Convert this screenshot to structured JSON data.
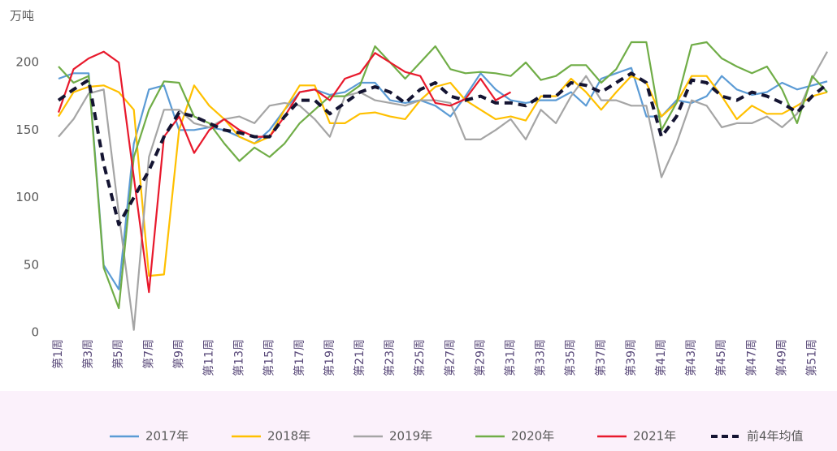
{
  "chart_data": {
    "type": "line",
    "y_label": "万吨",
    "categories": [
      "第1周",
      null,
      "第3周",
      null,
      "第5周",
      null,
      "第7周",
      null,
      "第9周",
      null,
      "第11周",
      null,
      "第13周",
      null,
      "第15周",
      null,
      "第17周",
      null,
      "第19周",
      null,
      "第21周",
      null,
      "第23周",
      null,
      "第25周",
      null,
      "第27周",
      null,
      "第29周",
      null,
      "第31周",
      null,
      "第33周",
      null,
      "第35周",
      null,
      "第37周",
      null,
      "第39周",
      null,
      "第41周",
      null,
      "第43周",
      null,
      "第45周",
      null,
      "第47周",
      null,
      "第49周",
      null,
      "第51周",
      null
    ],
    "ylim": [
      0,
      200
    ],
    "yticks": [
      0,
      50,
      100,
      150,
      200
    ],
    "grid": false,
    "series": [
      {
        "name": "2017年",
        "color": "#5b9bd5",
        "values": [
          188,
          192,
          192,
          50,
          32,
          140,
          180,
          183,
          150,
          150,
          152,
          150,
          145,
          140,
          150,
          165,
          178,
          180,
          176,
          178,
          185,
          185,
          172,
          170,
          172,
          168,
          160,
          175,
          192,
          180,
          172,
          170,
          172,
          172,
          178,
          168,
          188,
          192,
          196,
          160,
          160,
          172,
          170,
          175,
          190,
          180,
          176,
          178,
          185,
          180,
          183,
          186
        ]
      },
      {
        "name": "2018年",
        "color": "#ffc000",
        "values": [
          160,
          178,
          182,
          183,
          178,
          165,
          42,
          43,
          150,
          183,
          168,
          158,
          145,
          140,
          145,
          165,
          183,
          183,
          155,
          155,
          162,
          163,
          160,
          158,
          172,
          182,
          185,
          172,
          165,
          158,
          160,
          157,
          175,
          175,
          188,
          178,
          165,
          178,
          190,
          185,
          160,
          170,
          190,
          190,
          175,
          158,
          168,
          162,
          162,
          168,
          175,
          178
        ]
      },
      {
        "name": "2019年",
        "color": "#a5a5a5",
        "values": [
          145,
          158,
          177,
          180,
          88,
          2,
          130,
          165,
          165,
          155,
          152,
          158,
          160,
          155,
          168,
          170,
          168,
          158,
          145,
          175,
          178,
          172,
          170,
          168,
          172,
          172,
          170,
          143,
          143,
          150,
          158,
          143,
          165,
          155,
          175,
          190,
          172,
          172,
          168,
          168,
          115,
          140,
          172,
          168,
          152,
          155,
          155,
          160,
          152,
          162,
          188,
          208
        ]
      },
      {
        "name": "2020年",
        "color": "#70ad47",
        "values": [
          197,
          185,
          190,
          48,
          18,
          130,
          165,
          186,
          185,
          160,
          155,
          140,
          127,
          137,
          130,
          140,
          155,
          165,
          175,
          175,
          183,
          212,
          200,
          188,
          200,
          212,
          195,
          192,
          193,
          192,
          190,
          200,
          187,
          190,
          198,
          198,
          185,
          195,
          215,
          215,
          150,
          170,
          213,
          215,
          203,
          197,
          192,
          197,
          180,
          155,
          190,
          178
        ]
      },
      {
        "name": "2021年",
        "color": "#e8192c",
        "values": [
          163,
          195,
          203,
          208,
          200,
          115,
          30,
          145,
          160,
          133,
          150,
          158,
          150,
          145,
          145,
          160,
          178,
          180,
          172,
          188,
          192,
          207,
          200,
          193,
          190,
          170,
          168,
          173,
          188,
          172,
          178,
          null,
          null,
          null,
          null,
          null,
          null,
          null,
          null,
          null,
          null,
          null,
          null,
          null,
          null,
          null,
          null,
          null,
          null,
          null,
          null,
          null
        ]
      },
      {
        "name": "前4年均值",
        "color": "#141432",
        "dashed": true,
        "values": [
          172,
          180,
          187,
          125,
          80,
          100,
          120,
          145,
          163,
          160,
          155,
          150,
          148,
          145,
          145,
          160,
          172,
          172,
          162,
          170,
          178,
          182,
          178,
          170,
          180,
          185,
          175,
          172,
          175,
          170,
          170,
          168,
          175,
          175,
          185,
          183,
          178,
          185,
          192,
          185,
          145,
          160,
          187,
          185,
          175,
          172,
          178,
          175,
          170,
          163,
          175,
          184
        ]
      }
    ]
  }
}
